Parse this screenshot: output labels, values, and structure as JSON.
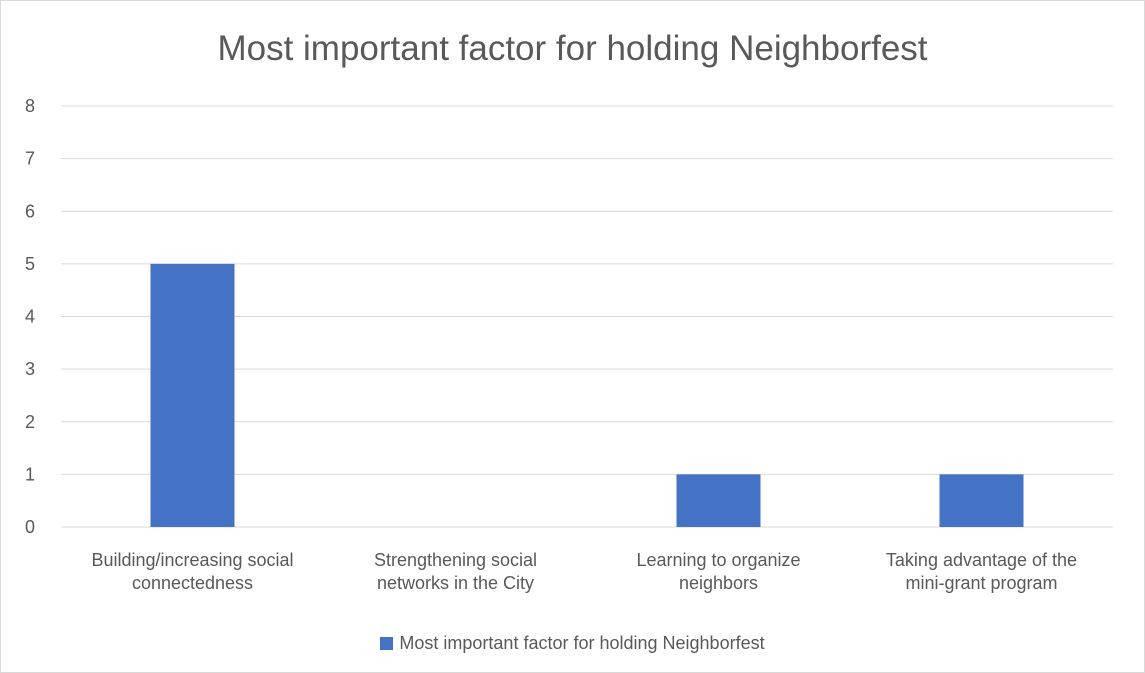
{
  "chart_data": {
    "type": "bar",
    "title": "Most important factor for holding Neighborfest",
    "categories": [
      [
        "Building/increasing social",
        "connectedness"
      ],
      [
        "Strengthening social",
        "networks in the City"
      ],
      [
        "Learning to organize",
        "neighbors"
      ],
      [
        "Taking advantage of the",
        "mini-grant program"
      ]
    ],
    "series": [
      {
        "name": "Most important factor for holding Neighborfest",
        "values": [
          5,
          0,
          1,
          1
        ],
        "color": "#4472c4"
      }
    ],
    "ylim": [
      0,
      8
    ],
    "yticks": [
      0,
      1,
      2,
      3,
      4,
      5,
      6,
      7,
      8
    ],
    "grid": true,
    "legend_position": "bottom",
    "colors": {
      "grid": "#d9d9d9",
      "text": "#595959",
      "bar": "#4472c4"
    }
  }
}
